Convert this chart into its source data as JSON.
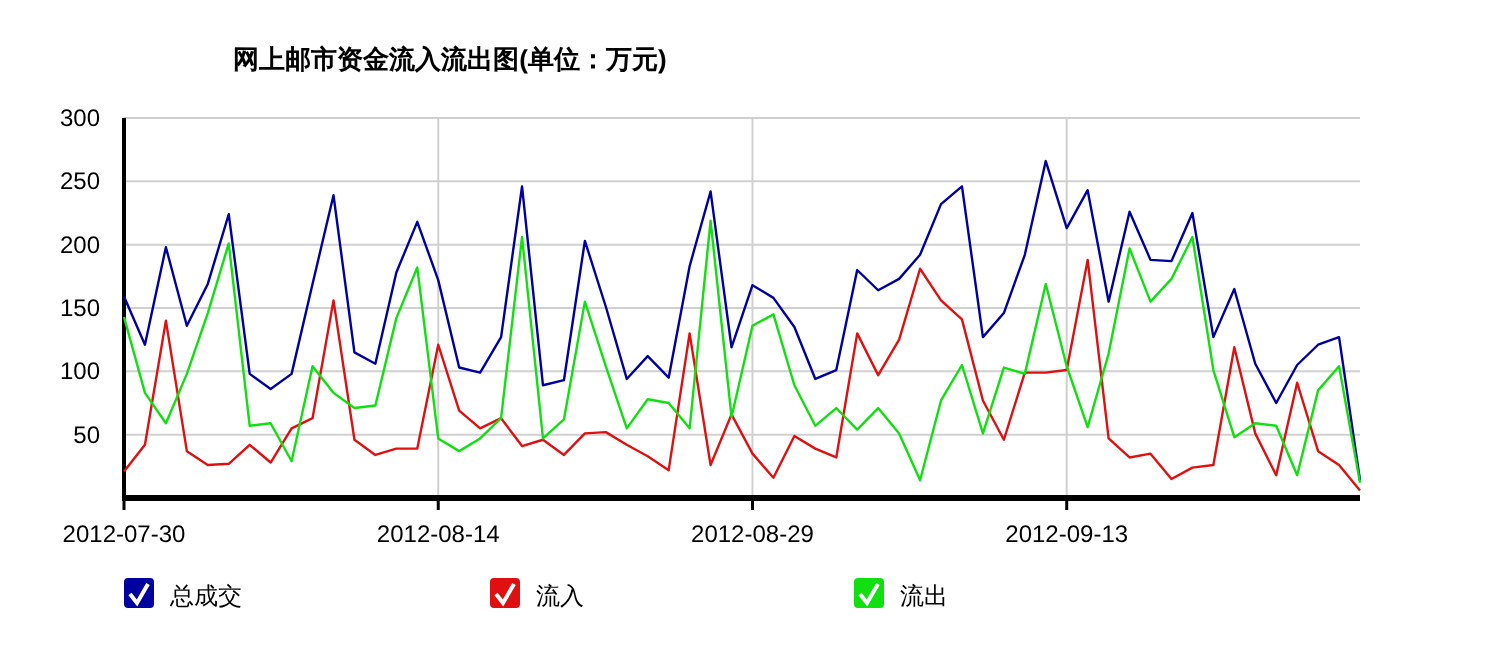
{
  "chart_data": {
    "type": "line",
    "title": "网上邮市资金流入流出图(单位：万元)",
    "x": [
      "2012-07-30",
      "2012-07-31",
      "2012-08-01",
      "2012-08-02",
      "2012-08-03",
      "2012-08-04",
      "2012-08-05",
      "2012-08-06",
      "2012-08-07",
      "2012-08-08",
      "2012-08-09",
      "2012-08-10",
      "2012-08-11",
      "2012-08-12",
      "2012-08-13",
      "2012-08-14",
      "2012-08-15",
      "2012-08-16",
      "2012-08-17",
      "2012-08-18",
      "2012-08-19",
      "2012-08-20",
      "2012-08-21",
      "2012-08-22",
      "2012-08-23",
      "2012-08-24",
      "2012-08-25",
      "2012-08-26",
      "2012-08-27",
      "2012-08-28",
      "2012-08-29",
      "2012-08-30",
      "2012-08-31",
      "2012-09-01",
      "2012-09-02",
      "2012-09-03",
      "2012-09-04",
      "2012-09-05",
      "2012-09-06",
      "2012-09-07",
      "2012-09-08",
      "2012-09-09",
      "2012-09-10",
      "2012-09-11",
      "2012-09-12",
      "2012-09-13",
      "2012-09-14",
      "2012-09-15",
      "2012-09-16",
      "2012-09-17",
      "2012-09-18",
      "2012-09-19",
      "2012-09-20",
      "2012-09-21",
      "2012-09-22",
      "2012-09-23",
      "2012-09-24",
      "2012-09-25",
      "2012-09-26",
      "2012-09-27"
    ],
    "series": [
      {
        "name": "总成交",
        "color": "#0000a0",
        "values": [
          159,
          121,
          198,
          136,
          169,
          224,
          98,
          86,
          98,
          169,
          239,
          115,
          106,
          178,
          218,
          172,
          103,
          99,
          127,
          246,
          89,
          93,
          203,
          151,
          94,
          112,
          95,
          183,
          242,
          119,
          168,
          158,
          135,
          94,
          101,
          180,
          164,
          173,
          192,
          232,
          246,
          127,
          146,
          192,
          266,
          213,
          243,
          155,
          226,
          188,
          187,
          225,
          127,
          165,
          106,
          75,
          105,
          121,
          127,
          14
        ]
      },
      {
        "name": "流入",
        "color": "#e01010",
        "values": [
          21,
          42,
          140,
          37,
          26,
          27,
          42,
          28,
          55,
          63,
          156,
          46,
          34,
          39,
          39,
          121,
          69,
          55,
          63,
          41,
          46,
          34,
          51,
          52,
          42,
          33,
          22,
          130,
          26,
          66,
          35,
          16,
          49,
          39,
          32,
          130,
          97,
          125,
          181,
          156,
          141,
          77,
          46,
          99,
          99,
          101,
          188,
          47,
          32,
          35,
          15,
          24,
          26,
          119,
          51,
          18,
          91,
          37,
          26,
          6
        ]
      },
      {
        "name": "流出",
        "color": "#10e010",
        "values": [
          143,
          83,
          59,
          98,
          146,
          201,
          57,
          59,
          29,
          104,
          83,
          71,
          73,
          142,
          182,
          47,
          37,
          47,
          63,
          206,
          47,
          62,
          155,
          104,
          55,
          78,
          75,
          55,
          219,
          64,
          136,
          145,
          89,
          57,
          71,
          54,
          71,
          51,
          14,
          77,
          105,
          51,
          103,
          98,
          169,
          104,
          56,
          114,
          197,
          155,
          173,
          206,
          101,
          48,
          59,
          57,
          18,
          85,
          104,
          12
        ]
      }
    ],
    "xlim": [
      "2012-07-30",
      "2012-09-27"
    ],
    "xticks": [
      "2012-07-30",
      "2012-08-14",
      "2012-08-29",
      "2012-09-13"
    ],
    "ylim": [
      0,
      300
    ],
    "yticks": [
      50,
      100,
      150,
      200,
      250,
      300
    ],
    "grid": true,
    "legend": "bottom",
    "marker": "none",
    "line_style": "solid"
  }
}
